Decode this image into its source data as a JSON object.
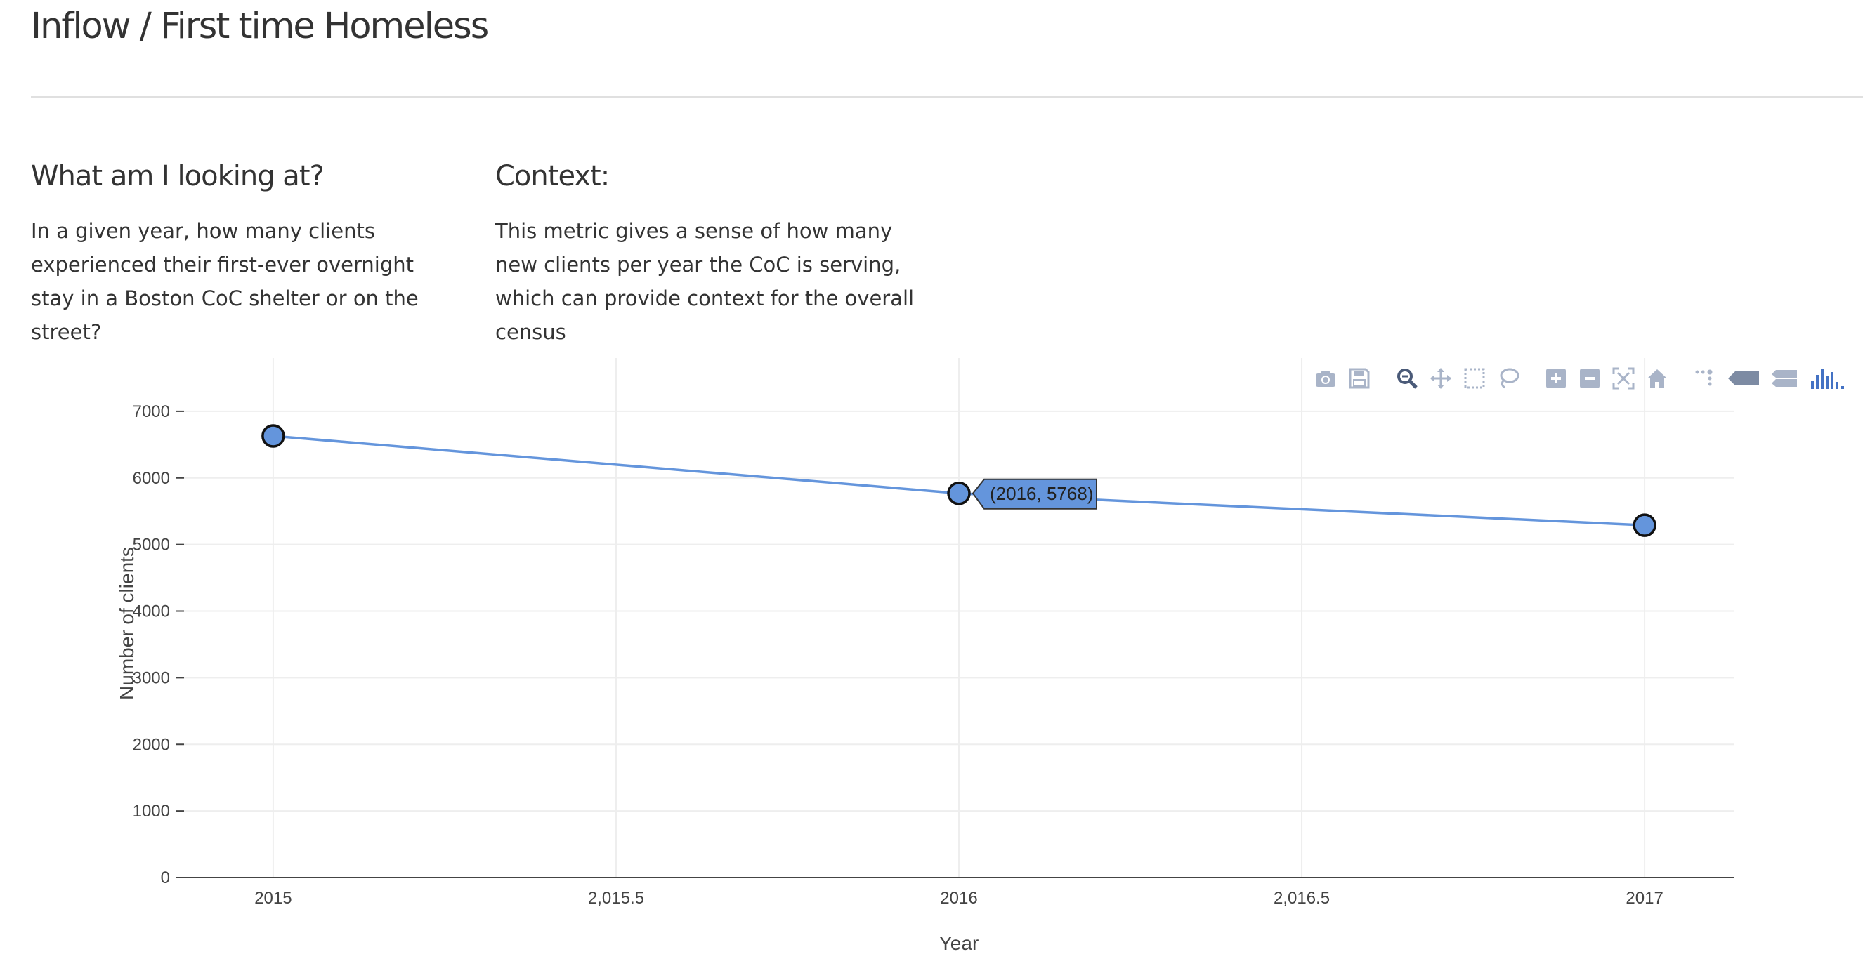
{
  "page": {
    "title": "Inflow / First time Homeless",
    "left_block": {
      "heading": "What am I looking at?",
      "lines": [
        "In a given year, how many clients",
        "experienced their first-ever overnight",
        "stay in a Boston CoC shelter or on the",
        "street?"
      ]
    },
    "right_block": {
      "heading": "Context:",
      "lines": [
        "This metric gives a sense of how many",
        "new clients per year the CoC is serving,",
        "which can provide context for the overall",
        "census"
      ]
    }
  },
  "modebar": {
    "icons": [
      "camera-icon",
      "save-icon",
      "zoom-icon",
      "pan-icon",
      "box-select-icon",
      "lasso-select-icon",
      "zoom-in-icon",
      "zoom-out-icon",
      "autoscale-icon",
      "reset-axes-icon",
      "spike-lines-icon",
      "hover-closest-icon",
      "hover-compare-icon",
      "plotly-logo-icon"
    ]
  },
  "chart_data": {
    "type": "line",
    "x": [
      2015,
      2016,
      2017
    ],
    "series": [
      {
        "values": [
          6630,
          5768,
          5290
        ],
        "color": "#6495dc"
      }
    ],
    "xlabel": "Year",
    "ylabel": "Number of clients",
    "xlim": [
      2014.87,
      2017.13
    ],
    "ylim": [
      0,
      7800
    ],
    "xticks": [
      2015,
      2015.5,
      2016,
      2016.5,
      2017
    ],
    "xtick_labels": [
      "2015",
      "2,015.5",
      "2016",
      "2,016.5",
      "2017"
    ],
    "yticks": [
      0,
      1000,
      2000,
      3000,
      4000,
      5000,
      6000,
      7000
    ],
    "ytick_labels": [
      "0",
      "1000",
      "2000",
      "3000",
      "4000",
      "5000",
      "6000",
      "7000"
    ],
    "grid": true,
    "hover_label": "(2016, 5768)",
    "colors": {
      "line": "#6495dc",
      "marker_outline": "#111111",
      "grid": "#eeeeee",
      "axis": "#444444",
      "modebar": "#a9b4c8",
      "modebar_active": "#4472c4"
    }
  }
}
